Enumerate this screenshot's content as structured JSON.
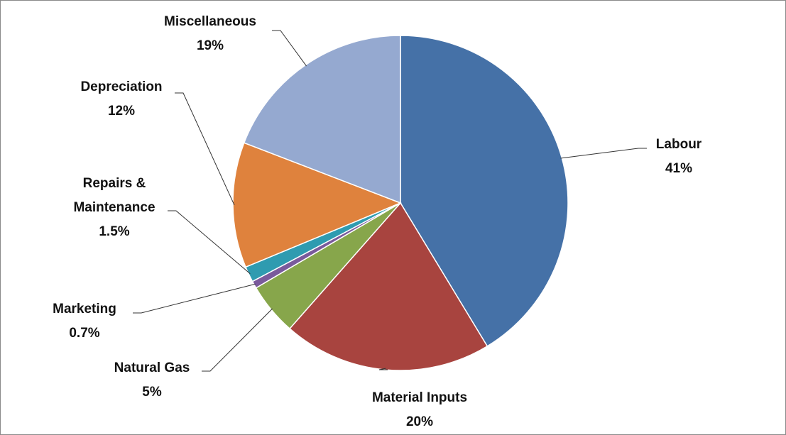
{
  "chart_data": {
    "type": "pie",
    "categories": [
      "Labour",
      "Material Inputs",
      "Natural Gas",
      "Marketing",
      "Repairs & Maintenance",
      "Depreciation",
      "Miscellaneous"
    ],
    "values": [
      41,
      20,
      5,
      0.7,
      1.5,
      12,
      19
    ],
    "value_labels": [
      "41%",
      "20%",
      "5%",
      "0.7%",
      "1.5%",
      "12%",
      "19%"
    ],
    "colors": [
      "#4571a7",
      "#a8443f",
      "#87a64b",
      "#7a5a9c",
      "#2f9bb0",
      "#df823d",
      "#95a9d0"
    ]
  }
}
